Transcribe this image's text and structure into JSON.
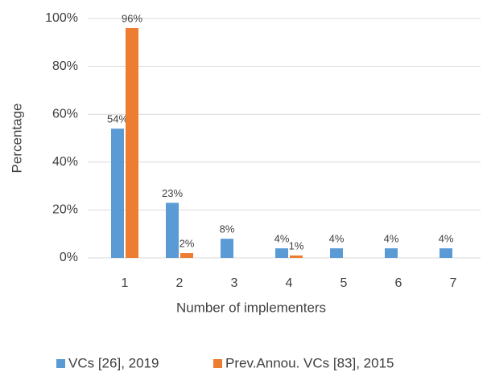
{
  "chart_data": {
    "type": "bar",
    "y_axis_label": "Percentage",
    "x_axis_label": "Number of implementers",
    "categories": [
      "1",
      "2",
      "3",
      "4",
      "5",
      "6",
      "7"
    ],
    "series": [
      {
        "name": "VCs [26], 2019",
        "color": "#5b9bd5",
        "values": [
          54,
          23,
          8,
          4,
          4,
          4,
          4
        ],
        "value_labels": [
          "54%",
          "23%",
          "8%",
          "4%",
          "4%",
          "4%",
          "4%"
        ]
      },
      {
        "name": "Prev.Annou. VCs [83], 2015",
        "color": "#ed7d31",
        "values": [
          96,
          2,
          null,
          1,
          null,
          null,
          null
        ],
        "value_labels": [
          "96%",
          "2%",
          null,
          "1%",
          null,
          null,
          null
        ]
      }
    ],
    "ylim": [
      0,
      100
    ],
    "yticks": [
      {
        "value": 0,
        "label": "0%"
      },
      {
        "value": 20,
        "label": "20%"
      },
      {
        "value": 40,
        "label": "40%"
      },
      {
        "value": 60,
        "label": "60%"
      },
      {
        "value": 80,
        "label": "80%"
      },
      {
        "value": 100,
        "label": "100%"
      }
    ],
    "grid": true,
    "legend": "bottom"
  }
}
